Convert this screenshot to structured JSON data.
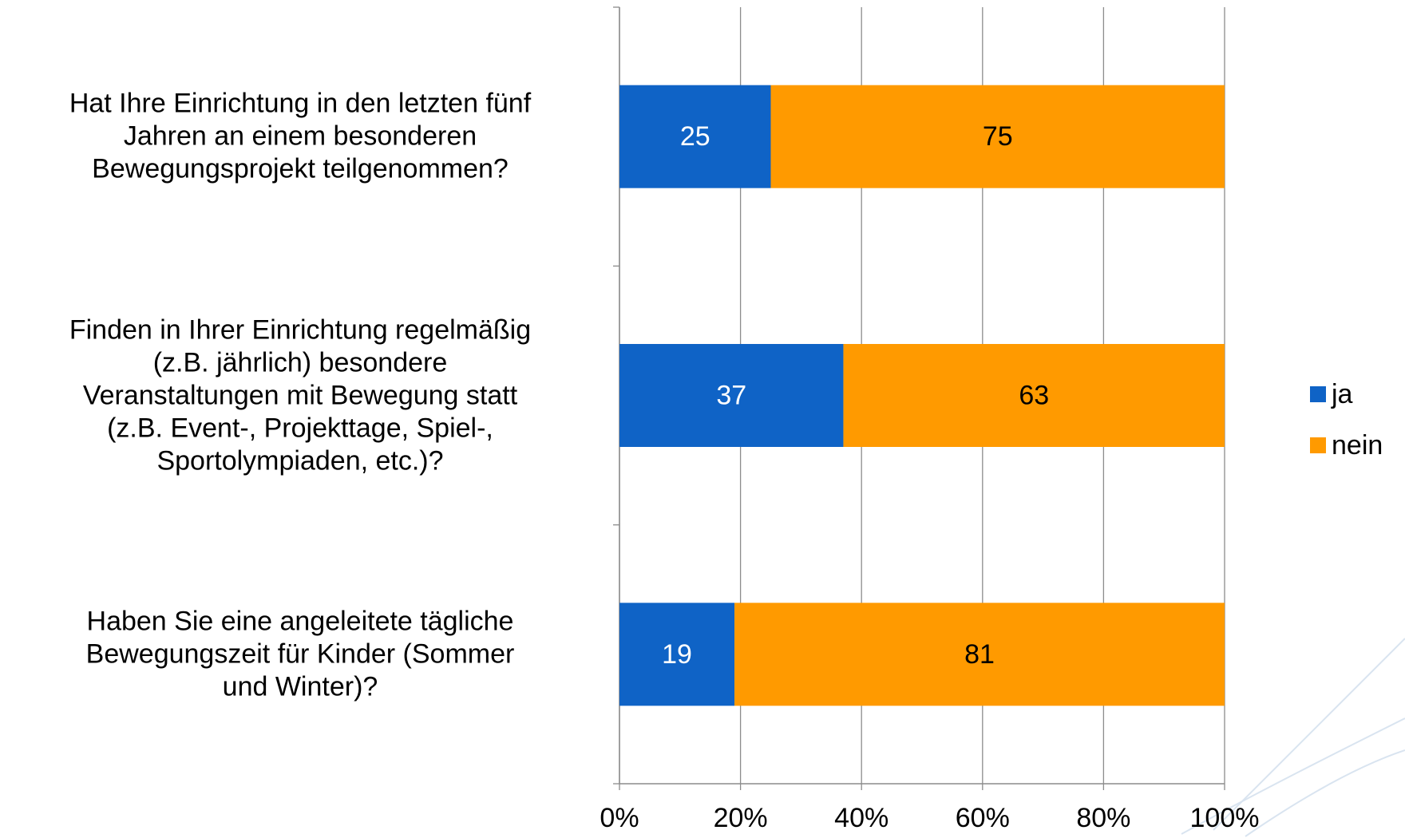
{
  "chart_data": {
    "type": "stacked_bar_horizontal",
    "categories": [
      "Hat Ihre Einrichtung in den letzten fünf\nJahren an einem besonderen\nBewegungsprojekt teilgenommen?",
      "Finden in Ihrer Einrichtung regelmäßig\n(z.B. jährlich) besondere\nVeranstaltungen mit Bewegung statt\n(z.B. Event-, Projekttage, Spiel-,\nSportolympiaden, etc.)?",
      "Haben Sie eine angeleitete tägliche\nBewegungszeit für Kinder (Sommer\nund Winter)?"
    ],
    "series": [
      {
        "name": "ja",
        "color": "#0f63c6",
        "values": [
          25,
          37,
          19
        ]
      },
      {
        "name": "nein",
        "color": "#ff9a00",
        "values": [
          75,
          63,
          81
        ]
      }
    ],
    "xlim": [
      0,
      100
    ],
    "xticks": [
      {
        "value": 0,
        "label": "0%"
      },
      {
        "value": 20,
        "label": "20%"
      },
      {
        "value": 40,
        "label": "40%"
      },
      {
        "value": 60,
        "label": "60%"
      },
      {
        "value": 80,
        "label": "80%"
      },
      {
        "value": 100,
        "label": "100%"
      }
    ],
    "grid": true,
    "legend": "right"
  }
}
